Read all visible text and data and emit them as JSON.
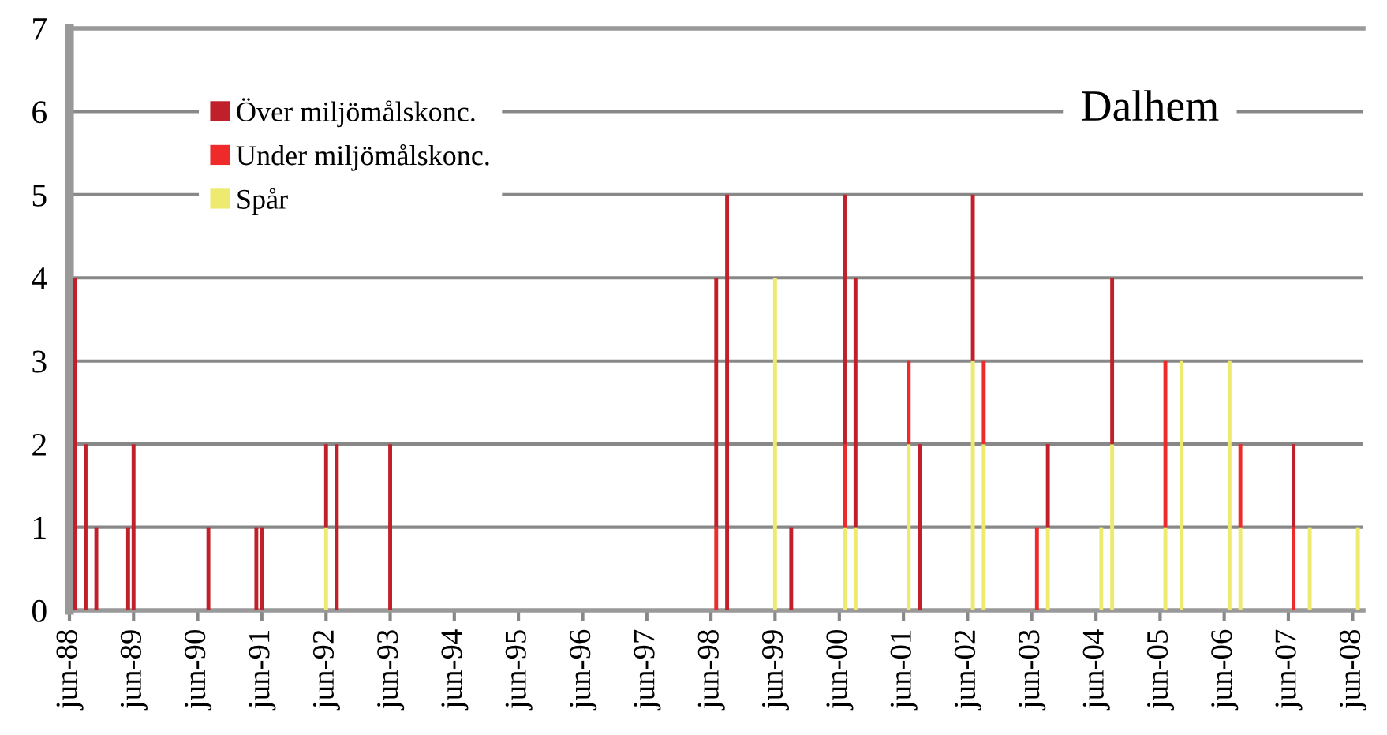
{
  "chart_data": {
    "type": "bar",
    "title": "Dalhem",
    "stacked": true,
    "x": [
      "1988-07",
      "1988-09",
      "1988-11",
      "1989-05",
      "1989-06",
      "1990-08",
      "1991-05",
      "1991-06",
      "1992-06",
      "1992-08",
      "1993-06",
      "1998-07",
      "1998-09",
      "1999-06",
      "1999-09",
      "2000-07",
      "2000-09",
      "2001-07",
      "2001-09",
      "2002-07",
      "2002-09",
      "2003-07",
      "2003-09",
      "2004-07",
      "2004-09",
      "2005-07",
      "2005-10",
      "2006-07",
      "2006-09",
      "2007-07",
      "2007-10",
      "2008-07"
    ],
    "series": [
      {
        "name": "Spår",
        "color": "#eeea70",
        "values": [
          null,
          null,
          null,
          null,
          null,
          null,
          null,
          null,
          1,
          null,
          null,
          null,
          null,
          4,
          null,
          1,
          1,
          2,
          null,
          3,
          2,
          null,
          1,
          1,
          2,
          1,
          3,
          3,
          1,
          null,
          1,
          1
        ]
      },
      {
        "name": "Under miljömålskonc.",
        "color": "#ee2a2a",
        "values": [
          null,
          null,
          null,
          null,
          null,
          null,
          null,
          null,
          null,
          null,
          null,
          1,
          null,
          null,
          null,
          1,
          null,
          1,
          null,
          null,
          1,
          1,
          null,
          null,
          null,
          2,
          null,
          null,
          1,
          1,
          null,
          null
        ]
      },
      {
        "name": "Över miljömålskonc.",
        "color": "#c0202a",
        "values": [
          4,
          2,
          1,
          1,
          2,
          1,
          1,
          1,
          1,
          2,
          2,
          3,
          5,
          null,
          1,
          3,
          3,
          null,
          2,
          2,
          null,
          null,
          1,
          null,
          2,
          null,
          null,
          null,
          null,
          1,
          null,
          null
        ]
      }
    ],
    "xlim": [
      "1988-06",
      "2008-08"
    ],
    "xticks": [
      {
        "value": "1988-06",
        "label": "jun-88"
      },
      {
        "value": "1989-06",
        "label": "jun-89"
      },
      {
        "value": "1990-06",
        "label": "jun-90"
      },
      {
        "value": "1991-06",
        "label": "jun-91"
      },
      {
        "value": "1992-06",
        "label": "jun-92"
      },
      {
        "value": "1993-06",
        "label": "jun-93"
      },
      {
        "value": "1994-06",
        "label": "jun-94"
      },
      {
        "value": "1995-06",
        "label": "jun-95"
      },
      {
        "value": "1996-06",
        "label": "jun-96"
      },
      {
        "value": "1997-06",
        "label": "jun-97"
      },
      {
        "value": "1998-06",
        "label": "jun-98"
      },
      {
        "value": "1999-06",
        "label": "jun-99"
      },
      {
        "value": "2000-06",
        "label": "jun-00"
      },
      {
        "value": "2001-06",
        "label": "jun-01"
      },
      {
        "value": "2002-06",
        "label": "jun-02"
      },
      {
        "value": "2003-06",
        "label": "jun-03"
      },
      {
        "value": "2004-06",
        "label": "jun-04"
      },
      {
        "value": "2005-06",
        "label": "jun-05"
      },
      {
        "value": "2006-06",
        "label": "jun-06"
      },
      {
        "value": "2007-06",
        "label": "jun-07"
      },
      {
        "value": "2008-06",
        "label": "jun-08"
      }
    ],
    "ylim": [
      0,
      7
    ],
    "yticks": [
      0,
      1,
      2,
      3,
      4,
      5,
      6,
      7
    ],
    "grid": "y",
    "legend": "top left"
  }
}
